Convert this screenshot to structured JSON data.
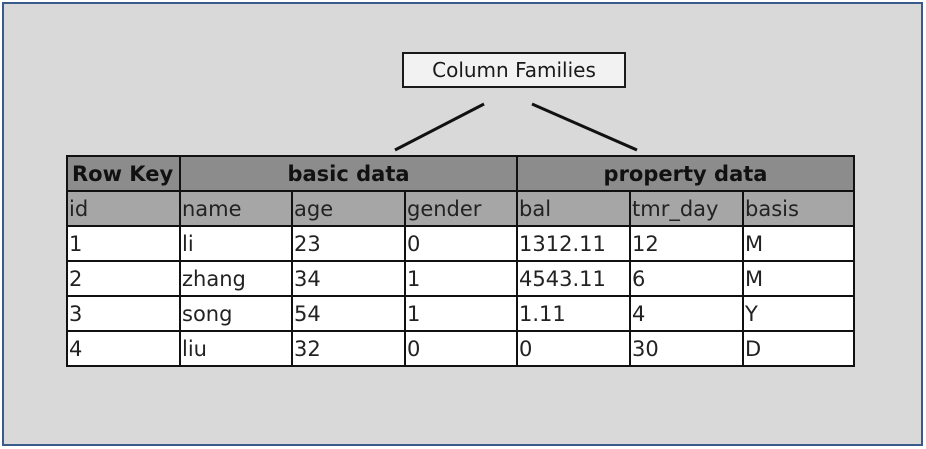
{
  "column_families_label": "Column Families",
  "table": {
    "row_key_header": "Row Key",
    "families": [
      "basic data",
      "property data"
    ],
    "columns": [
      "id",
      "name",
      "age",
      "gender",
      "bal",
      "tmr_day",
      "basis"
    ],
    "rows": [
      [
        "1",
        "li",
        "23",
        "0",
        "1312.11",
        "12",
        "M"
      ],
      [
        "2",
        "zhang",
        "34",
        "1",
        "4543.11",
        "6",
        "M"
      ],
      [
        "3",
        "song",
        "54",
        "1",
        "1.11",
        "4",
        "Y"
      ],
      [
        "4",
        "liu",
        "32",
        "0",
        "0",
        "30",
        "D"
      ]
    ]
  },
  "colors": {
    "frame_border": "#3b5a8c",
    "frame_fill": "#d9d9d9",
    "group_header": "#8c8c8c",
    "column_header": "#a6a6a6"
  }
}
